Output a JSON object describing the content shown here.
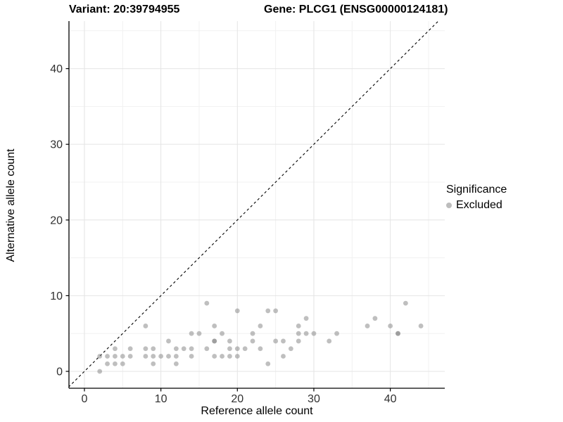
{
  "titles": {
    "variant": "Variant: 20:39794955",
    "gene": "Gene: PLCG1 (ENSG00000124181)"
  },
  "legend": {
    "title": "Significance",
    "items": [
      {
        "label": "Excluded",
        "color": "#bdbdbd"
      }
    ]
  },
  "chart_data": {
    "type": "scatter",
    "title": "Variant: 20:39794955  /  Gene: PLCG1 (ENSG00000124181)",
    "xlabel": "Reference allele count",
    "ylabel": "Alternative allele count",
    "xlim": [
      -2.02,
      47.12
    ],
    "ylim": [
      -2.23,
      46.28
    ],
    "x_ticks": [
      0,
      10,
      20,
      30,
      40
    ],
    "y_ticks": [
      0,
      10,
      20,
      30,
      40
    ],
    "x_minor_ticks": [
      5,
      15,
      25,
      35,
      45
    ],
    "y_minor_ticks": [
      5,
      15,
      25,
      35,
      45
    ],
    "grid": true,
    "legend_position": "right",
    "identity_line": {
      "style": "dashed",
      "from": [
        -3,
        -3
      ],
      "to": [
        48,
        48
      ]
    },
    "point_color": "#808080",
    "point_opacity": 0.5,
    "point_radius": 3.4,
    "series": [
      {
        "name": "Excluded",
        "points": [
          [
            2,
            0
          ],
          [
            3,
            1
          ],
          [
            4,
            1
          ],
          [
            5,
            1
          ],
          [
            9,
            1
          ],
          [
            12,
            1
          ],
          [
            24,
            1
          ],
          [
            2,
            2
          ],
          [
            3,
            2
          ],
          [
            4,
            2
          ],
          [
            5,
            2
          ],
          [
            6,
            2
          ],
          [
            8,
            2
          ],
          [
            9,
            2
          ],
          [
            10,
            2
          ],
          [
            11,
            2
          ],
          [
            12,
            2
          ],
          [
            14,
            2
          ],
          [
            17,
            2
          ],
          [
            18,
            2
          ],
          [
            19,
            2
          ],
          [
            20,
            2
          ],
          [
            26,
            2
          ],
          [
            4,
            3
          ],
          [
            6,
            3
          ],
          [
            8,
            3
          ],
          [
            9,
            3
          ],
          [
            12,
            3
          ],
          [
            13,
            3
          ],
          [
            14,
            3
          ],
          [
            16,
            3
          ],
          [
            19,
            3
          ],
          [
            20,
            3
          ],
          [
            21,
            3
          ],
          [
            23,
            3
          ],
          [
            27,
            3
          ],
          [
            11,
            4
          ],
          [
            17,
            4
          ],
          [
            17,
            4
          ],
          [
            19,
            4
          ],
          [
            22,
            4
          ],
          [
            25,
            4
          ],
          [
            26,
            4
          ],
          [
            28,
            4
          ],
          [
            32,
            4
          ],
          [
            14,
            5
          ],
          [
            15,
            5
          ],
          [
            18,
            5
          ],
          [
            22,
            5
          ],
          [
            28,
            5
          ],
          [
            29,
            5
          ],
          [
            30,
            5
          ],
          [
            33,
            5
          ],
          [
            41,
            5
          ],
          [
            41,
            5
          ],
          [
            8,
            6
          ],
          [
            17,
            6
          ],
          [
            23,
            6
          ],
          [
            28,
            6
          ],
          [
            37,
            6
          ],
          [
            40,
            6
          ],
          [
            44,
            6
          ],
          [
            29,
            7
          ],
          [
            38,
            7
          ],
          [
            20,
            8
          ],
          [
            24,
            8
          ],
          [
            25,
            8
          ],
          [
            16,
            9
          ],
          [
            42,
            9
          ]
        ]
      }
    ],
    "colors": {
      "major_grid": "#e4e4e4",
      "minor_grid": "#f1f1f1",
      "axis_line": "#000000",
      "tick_label": "#303030",
      "identity_line": "#000000"
    }
  }
}
